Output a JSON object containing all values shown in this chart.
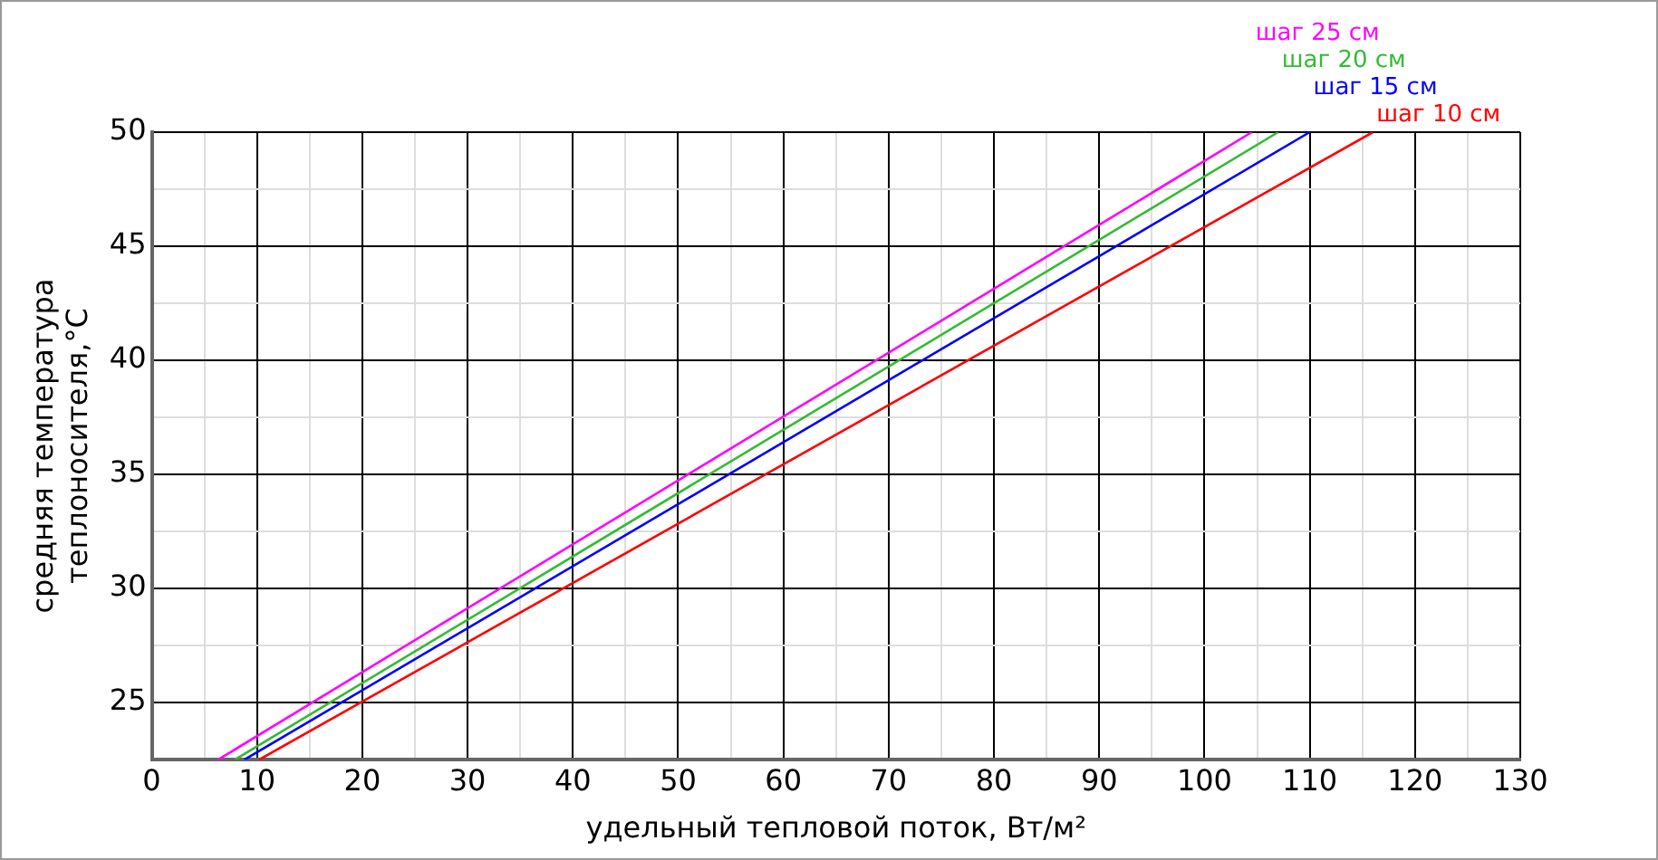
{
  "chart_data": {
    "type": "line",
    "xlabel": "удельный тепловой поток, Вт/м²",
    "ylabel": "средняя температура\nтеплоносителя,°C",
    "xlim": [
      0,
      130
    ],
    "xticks": [
      0,
      {
        "value": 5,
        "label": null
      },
      10,
      {
        "value": 15,
        "label": null
      },
      20,
      {
        "value": 25,
        "label": null
      },
      30,
      {
        "value": 35,
        "label": null
      },
      40,
      {
        "value": 45,
        "label": null
      },
      50,
      {
        "value": 55,
        "label": null
      },
      60,
      {
        "value": 65,
        "label": null
      },
      70,
      {
        "value": 75,
        "label": null
      },
      80,
      {
        "value": 85,
        "label": null
      },
      90,
      {
        "value": 95,
        "label": null
      },
      100,
      {
        "value": 105,
        "label": null
      },
      110,
      {
        "value": 115,
        "label": null
      },
      120,
      {
        "value": 125,
        "label": null
      },
      130
    ],
    "ylim": [
      22.5,
      50
    ],
    "yticks": [
      {
        "value": 22.5,
        "label": null
      },
      25,
      {
        "value": 27.5,
        "label": null
      },
      30,
      {
        "value": 32.5,
        "label": null
      },
      35,
      {
        "value": 37.5,
        "label": null
      },
      40,
      {
        "value": 42.5,
        "label": null
      },
      45,
      {
        "value": 47.5,
        "label": null
      },
      50
    ],
    "grid": true,
    "legend": false,
    "marker": "none",
    "line_style": "solid",
    "series": [
      {
        "name": "шаг 25 см",
        "color": "#ff00ff",
        "x": [
          6.3,
          104.5
        ],
        "values": [
          22.5,
          50
        ]
      },
      {
        "name": "шаг 20 см",
        "color": "#33bb33",
        "x": [
          7.9,
          107
        ],
        "values": [
          22.5,
          50
        ]
      },
      {
        "name": "шаг 15 см",
        "color": "#0000ff",
        "x": [
          8.8,
          110
        ],
        "values": [
          22.5,
          50
        ]
      },
      {
        "name": "шаг 10 см",
        "color": "#ff0000",
        "x": [
          10.2,
          116
        ],
        "values": [
          22.5,
          50
        ]
      }
    ]
  }
}
